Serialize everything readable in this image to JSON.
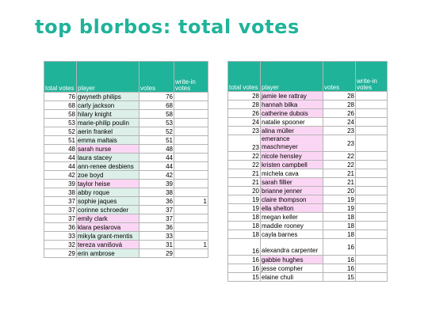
{
  "title": "top blorbos: total votes",
  "headers": {
    "total_votes": "total votes",
    "player": "player",
    "votes": "votes",
    "write_in_votes": "write-in votes"
  },
  "colors": {
    "accent": "#1fb39a",
    "pink_highlight": "#fbd6f4",
    "green_highlight": "#dcefe9"
  },
  "left_table": {
    "rows": [
      {
        "total": "76",
        "player": "gwyneth philips",
        "votes": "76",
        "write_in": "",
        "highlight": "green"
      },
      {
        "total": "68",
        "player": "carly jackson",
        "votes": "68",
        "write_in": "",
        "highlight": "green"
      },
      {
        "total": "58",
        "player": "hilary knight",
        "votes": "58",
        "write_in": "",
        "highlight": "green"
      },
      {
        "total": "53",
        "player": "marie-philip poulin",
        "votes": "53",
        "write_in": "",
        "highlight": "green"
      },
      {
        "total": "52",
        "player": "aerin frankel",
        "votes": "52",
        "write_in": "",
        "highlight": "green"
      },
      {
        "total": "51",
        "player": "emma maltais",
        "votes": "51",
        "write_in": "",
        "highlight": "green"
      },
      {
        "total": "48",
        "player": "sarah nurse",
        "votes": "48",
        "write_in": "",
        "highlight": "pink"
      },
      {
        "total": "44",
        "player": "laura stacey",
        "votes": "44",
        "write_in": "",
        "highlight": "green"
      },
      {
        "total": "44",
        "player": "ann-renee desbiens",
        "votes": "44",
        "write_in": "",
        "highlight": "green"
      },
      {
        "total": "42",
        "player": "zoe boyd",
        "votes": "42",
        "write_in": "",
        "highlight": "green"
      },
      {
        "total": "39",
        "player": "taylor heise",
        "votes": "39",
        "write_in": "",
        "highlight": "pink"
      },
      {
        "total": "38",
        "player": "abby roque",
        "votes": "38",
        "write_in": "",
        "highlight": "green"
      },
      {
        "total": "37",
        "player": "sophie jaques",
        "votes": "36",
        "write_in": "1",
        "highlight": "green"
      },
      {
        "total": "37",
        "player": "corinne schroeder",
        "votes": "37",
        "write_in": "",
        "highlight": "green"
      },
      {
        "total": "37",
        "player": "emily clark",
        "votes": "37",
        "write_in": "",
        "highlight": "pink"
      },
      {
        "total": "36",
        "player": "klara peslarova",
        "votes": "36",
        "write_in": "",
        "highlight": "pink"
      },
      {
        "total": "33",
        "player": "mikyla grant-mentis",
        "votes": "33",
        "write_in": "",
        "highlight": "green"
      },
      {
        "total": "32",
        "player": "tereza vanišová",
        "votes": "31",
        "write_in": "1",
        "highlight": "pink"
      },
      {
        "total": "29",
        "player": "erin ambrose",
        "votes": "29",
        "write_in": "",
        "highlight": "green"
      }
    ]
  },
  "right_table": {
    "rows": [
      {
        "total": "28",
        "player": "jamie lee rattray",
        "votes": "28",
        "write_in": "",
        "highlight": "pink",
        "tall": false
      },
      {
        "total": "28",
        "player": "hannah bilka",
        "votes": "28",
        "write_in": "",
        "highlight": "pink",
        "tall": false
      },
      {
        "total": "26",
        "player": "catherine dubois",
        "votes": "26",
        "write_in": "",
        "highlight": "pink",
        "tall": false
      },
      {
        "total": "24",
        "player": "natalie spooner",
        "votes": "24",
        "write_in": "",
        "highlight": "none",
        "tall": false
      },
      {
        "total": "23",
        "player": "alina müller",
        "votes": "23",
        "write_in": "",
        "highlight": "pink",
        "tall": false
      },
      {
        "total": "23",
        "player": "emerance maschmeyer",
        "votes": "23",
        "write_in": "",
        "highlight": "pink",
        "tall": true
      },
      {
        "total": "22",
        "player": "nicole hensley",
        "votes": "22",
        "write_in": "",
        "highlight": "pink",
        "tall": false
      },
      {
        "total": "22",
        "player": "kristen campbell",
        "votes": "22",
        "write_in": "",
        "highlight": "pink",
        "tall": false
      },
      {
        "total": "21",
        "player": "michela cava",
        "votes": "21",
        "write_in": "",
        "highlight": "none",
        "tall": false
      },
      {
        "total": "21",
        "player": "sarah fillier",
        "votes": "21",
        "write_in": "",
        "highlight": "pink",
        "tall": false
      },
      {
        "total": "20",
        "player": "brianne jenner",
        "votes": "20",
        "write_in": "",
        "highlight": "pink",
        "tall": false
      },
      {
        "total": "19",
        "player": "claire thompson",
        "votes": "19",
        "write_in": "",
        "highlight": "pink",
        "tall": false
      },
      {
        "total": "19",
        "player": "ella shelton",
        "votes": "19",
        "write_in": "",
        "highlight": "pink",
        "tall": false
      },
      {
        "total": "18",
        "player": "megan keller",
        "votes": "18",
        "write_in": "",
        "highlight": "none",
        "tall": false
      },
      {
        "total": "18",
        "player": "maddie rooney",
        "votes": "18",
        "write_in": "",
        "highlight": "none",
        "tall": false
      },
      {
        "total": "18",
        "player": "cayla barnes",
        "votes": "18",
        "write_in": "",
        "highlight": "none",
        "tall": false
      },
      {
        "total": "16",
        "player": "alexandra carpenter",
        "votes": "16",
        "write_in": "",
        "highlight": "none",
        "tall": true
      },
      {
        "total": "16",
        "player": "gabbie hughes",
        "votes": "16",
        "write_in": "",
        "highlight": "pink",
        "tall": false
      },
      {
        "total": "16",
        "player": "jesse compher",
        "votes": "16",
        "write_in": "",
        "highlight": "none",
        "tall": false
      },
      {
        "total": "15",
        "player": "elaine chuli",
        "votes": "15",
        "write_in": "",
        "highlight": "none",
        "tall": false
      }
    ]
  }
}
